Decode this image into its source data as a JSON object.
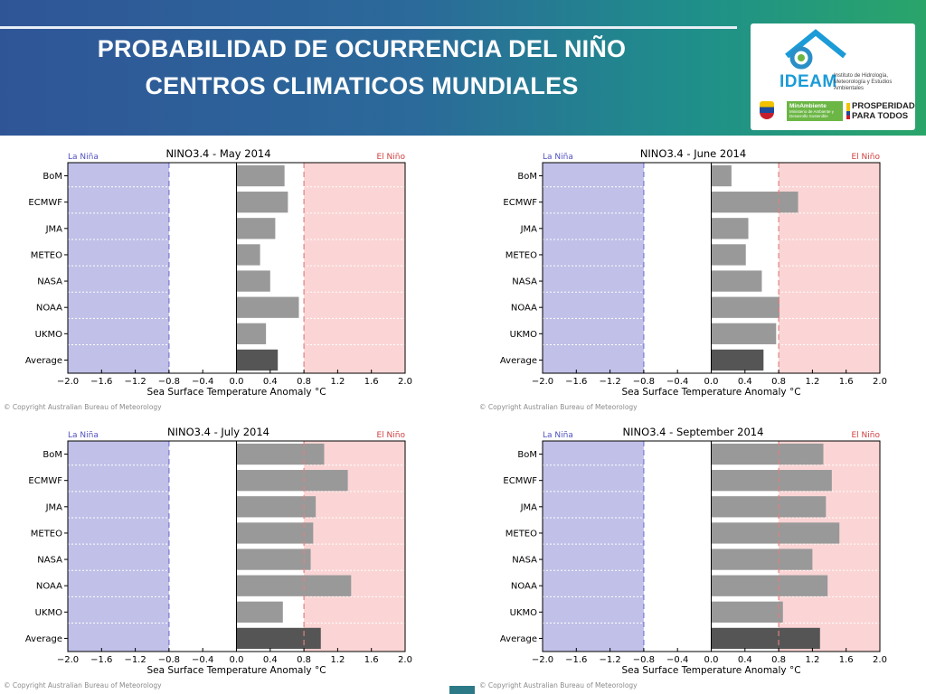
{
  "header": {
    "title_line1": "PROBABILIDAD DE OCURRENCIA DEL NIÑO",
    "title_line2": "CENTROS CLIMATICOS MUNDIALES"
  },
  "logo": {
    "org": "IDEAM",
    "subtitle": "Instituto de Hidrología, Meteorología y Estudios Ambientales",
    "ministry": "MinAmbiente",
    "ministry_sub": "Ministerio de Ambiente y Desarrollo Sostenible",
    "slogan": "PROSPERIDAD PARA TODOS"
  },
  "colors": {
    "la_nina_fill": "#c0c0e8",
    "el_nino_fill": "#fbd5d5",
    "bar": "#999999",
    "average_bar": "#555555",
    "la_nina_text": "#5050c0",
    "el_nino_text": "#d04040",
    "threshold_line": "#7b7bd6",
    "threshold_line_nino": "#e08080"
  },
  "copyright": "© Copyright Australian Bureau of Meteorology",
  "chart_data": [
    {
      "type": "bar",
      "orientation": "horizontal",
      "title": "NINO3.4 - May 2014",
      "xlabel": "Sea Surface Temperature Anomaly °C",
      "categories": [
        "BoM",
        "ECMWF",
        "JMA",
        "METEO",
        "NASA",
        "NOAA",
        "UKMO",
        "Average"
      ],
      "values": [
        0.57,
        0.61,
        0.46,
        0.28,
        0.4,
        0.74,
        0.35,
        0.49
      ],
      "xlim": [
        -2.0,
        2.0
      ],
      "xticks": [
        "−2.0",
        "−1.6",
        "−1.2",
        "−0.8",
        "−0.4",
        "0.0",
        "0.4",
        "0.8",
        "1.2",
        "1.6",
        "2.0"
      ],
      "la_nina_label": "La Niña",
      "el_nino_label": "El Niño",
      "la_nina_threshold": -0.8,
      "el_nino_threshold": 0.8
    },
    {
      "type": "bar",
      "orientation": "horizontal",
      "title": "NINO3.4 - June 2014",
      "xlabel": "Sea Surface Temperature Anomaly °C",
      "categories": [
        "BoM",
        "ECMWF",
        "JMA",
        "METEO",
        "NASA",
        "NOAA",
        "UKMO",
        "Average"
      ],
      "values": [
        0.24,
        1.03,
        0.44,
        0.41,
        0.6,
        0.81,
        0.77,
        0.62
      ],
      "xlim": [
        -2.0,
        2.0
      ],
      "xticks": [
        "−2.0",
        "−1.6",
        "−1.2",
        "−0.8",
        "−0.4",
        "0.0",
        "0.4",
        "0.8",
        "1.2",
        "1.6",
        "2.0"
      ],
      "la_nina_label": "La Niña",
      "el_nino_label": "El Niño",
      "la_nina_threshold": -0.8,
      "el_nino_threshold": 0.8
    },
    {
      "type": "bar",
      "orientation": "horizontal",
      "title": "NINO3.4 - July 2014",
      "xlabel": "Sea Surface Temperature Anomaly °C",
      "categories": [
        "BoM",
        "ECMWF",
        "JMA",
        "METEO",
        "NASA",
        "NOAA",
        "UKMO",
        "Average"
      ],
      "values": [
        1.04,
        1.32,
        0.94,
        0.91,
        0.88,
        1.36,
        0.55,
        1.0
      ],
      "xlim": [
        -2.0,
        2.0
      ],
      "xticks": [
        "−2.0",
        "−1.6",
        "−1.2",
        "−0.8",
        "−0.4",
        "0.0",
        "0.4",
        "0.8",
        "1.2",
        "1.6",
        "2.0"
      ],
      "la_nina_label": "La Niña",
      "el_nino_label": "El Niño",
      "la_nina_threshold": -0.8,
      "el_nino_threshold": 0.8
    },
    {
      "type": "bar",
      "orientation": "horizontal",
      "title": "NINO3.4 - September 2014",
      "xlabel": "Sea Surface Temperature Anomaly °C",
      "categories": [
        "BoM",
        "ECMWF",
        "JMA",
        "METEO",
        "NASA",
        "NOAA",
        "UKMO",
        "Average"
      ],
      "values": [
        1.33,
        1.43,
        1.36,
        1.52,
        1.2,
        1.38,
        0.85,
        1.29
      ],
      "xlim": [
        -2.0,
        2.0
      ],
      "xticks": [
        "−2.0",
        "−1.6",
        "−1.2",
        "−0.8",
        "−0.4",
        "0.0",
        "0.4",
        "0.8",
        "1.2",
        "1.6",
        "2.0"
      ],
      "la_nina_label": "La Niña",
      "el_nino_label": "El Niño",
      "la_nina_threshold": -0.8,
      "el_nino_threshold": 0.8
    }
  ]
}
